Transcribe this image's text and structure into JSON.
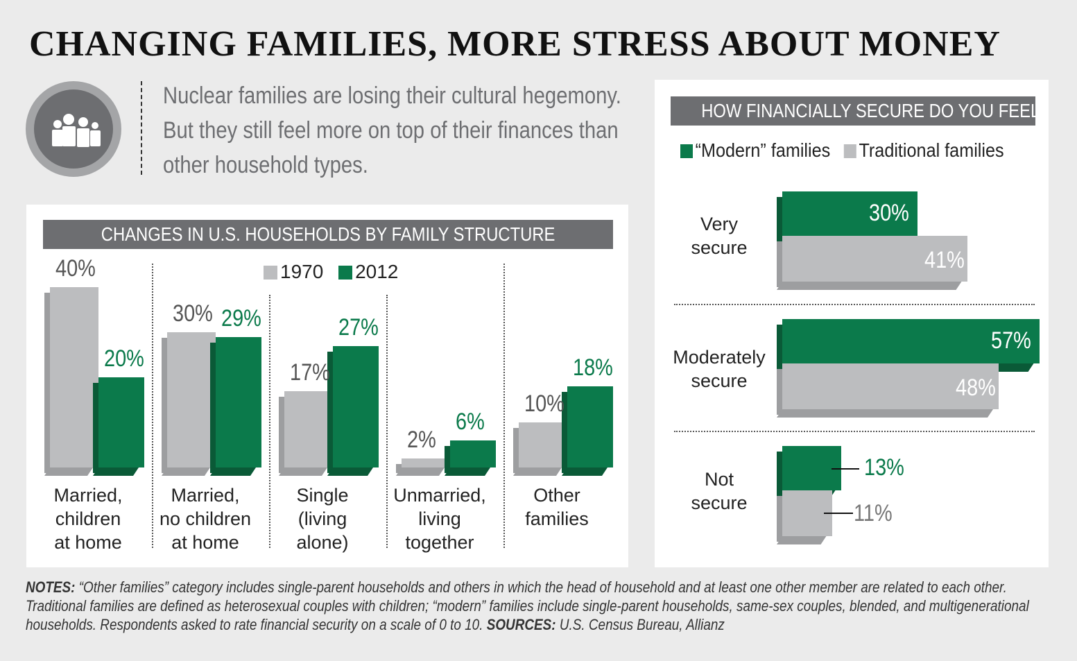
{
  "title": "CHANGING FAMILIES, MORE STRESS ABOUT MONEY",
  "intro": "Nuclear families are losing their cultural hegemony. But they still feel more on top of their finances than other household types.",
  "colors": {
    "green": "#0b7a4b",
    "green_dark": "#0a5a37",
    "gray": "#bcbdbf",
    "gray_dark": "#9d9ea0"
  },
  "notes": {
    "notes_label": "NOTES:",
    "notes_text": " “Other families” category includes single-parent households and others in which the head of household and at least one other member are related to each other. Traditional families are defined as heterosexual couples with children; “modern” families include single-parent households, same-sex couples, blended, and multigenerational households. Respondents asked to rate financial security on a scale of 0 to 10. ",
    "sources_label": "SOURCES:",
    "sources_text": " U.S. Census Bureau, Allianz"
  },
  "chart_data": [
    {
      "type": "bar",
      "title": "CHANGES IN U.S. HOUSEHOLDS BY FAMILY STRUCTURE",
      "categories": [
        "Married, children at home",
        "Married, no children at home",
        "Single (living alone)",
        "Unmarried, living together",
        "Other families"
      ],
      "category_lines": [
        [
          "Married,",
          "children",
          "at home"
        ],
        [
          "Married,",
          "no children",
          "at home"
        ],
        [
          "Single",
          "(living",
          "alone)"
        ],
        [
          "Unmarried,",
          "living",
          "together"
        ],
        [
          "Other",
          "families"
        ]
      ],
      "series": [
        {
          "name": "1970",
          "values": [
            40,
            30,
            17,
            2,
            10
          ]
        },
        {
          "name": "2012",
          "values": [
            20,
            29,
            27,
            6,
            18
          ]
        }
      ],
      "unit": "%",
      "ylim": [
        0,
        40
      ]
    },
    {
      "type": "bar",
      "orientation": "horizontal",
      "title": "HOW FINANCIALLY SECURE DO YOU FEEL?",
      "categories": [
        "Very secure",
        "Moderately secure",
        "Not secure"
      ],
      "category_lines": [
        [
          "Very",
          "secure"
        ],
        [
          "Moderately",
          "secure"
        ],
        [
          "Not",
          "secure"
        ]
      ],
      "series": [
        {
          "name": "“Modern” families",
          "values": [
            30,
            57,
            13
          ]
        },
        {
          "name": "Traditional families",
          "values": [
            41,
            48,
            11
          ]
        }
      ],
      "unit": "%",
      "xlim": [
        0,
        60
      ]
    }
  ]
}
